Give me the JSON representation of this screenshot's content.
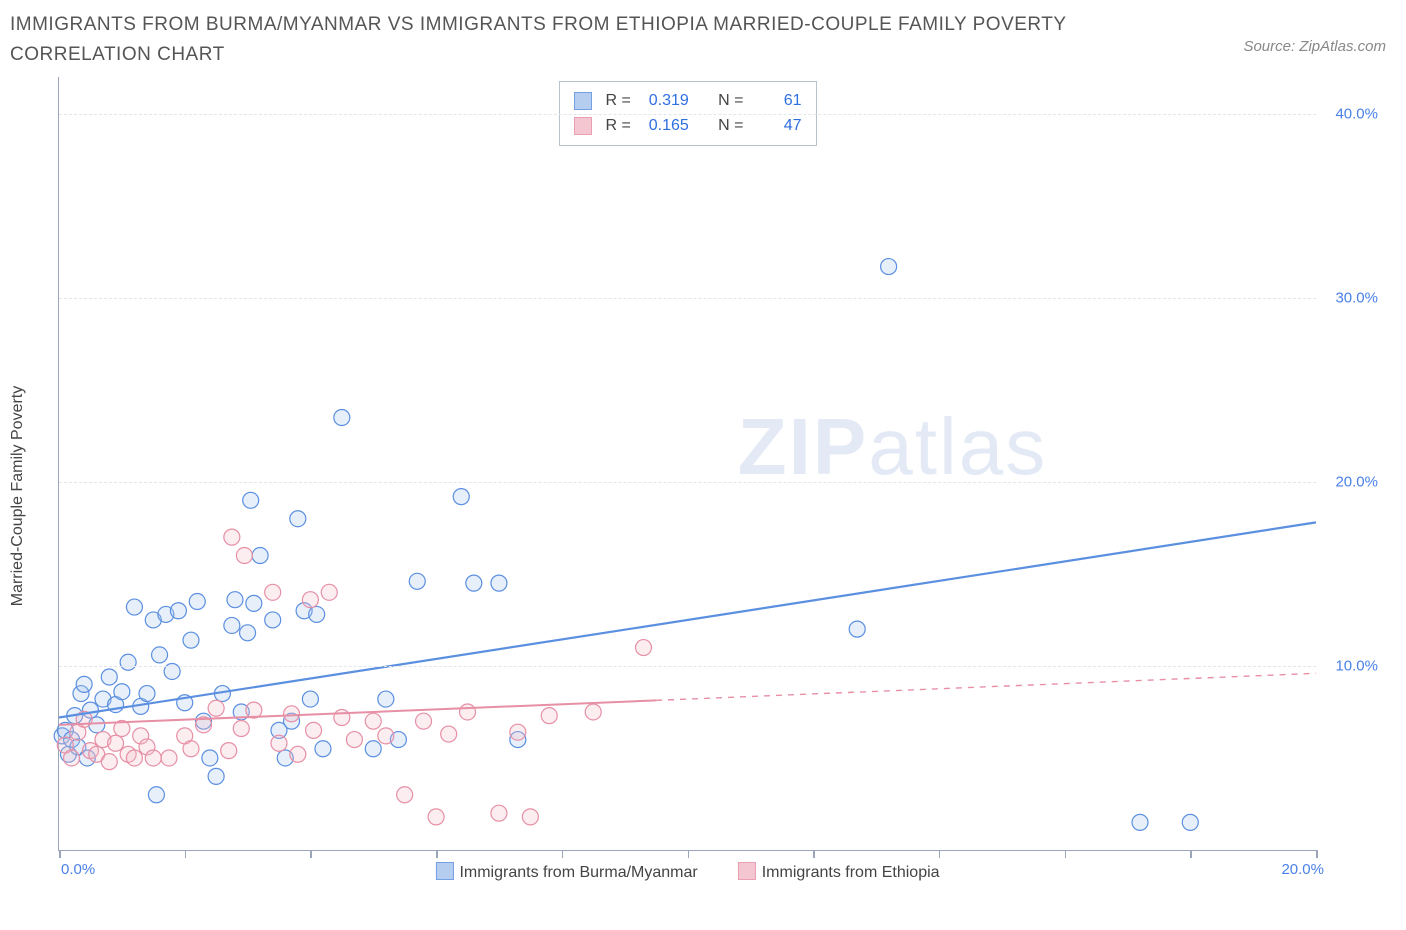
{
  "title": "IMMIGRANTS FROM BURMA/MYANMAR VS IMMIGRANTS FROM ETHIOPIA MARRIED-COUPLE FAMILY POVERTY CORRELATION CHART",
  "source": "Source: ZipAtlas.com",
  "watermark_bold": "ZIP",
  "watermark_light": "atlas",
  "yaxis_label": "Married-Couple Family Poverty",
  "chart": {
    "type": "scatter",
    "xlim": [
      0,
      20
    ],
    "ylim": [
      0,
      42
    ],
    "x_ticks": [
      0,
      2,
      4,
      6,
      8,
      10,
      12,
      14,
      16,
      18,
      20
    ],
    "x_tick_labels": {
      "first": "0.0%",
      "last": "20.0%"
    },
    "y_grid": [
      10,
      20,
      30,
      40
    ],
    "y_tick_labels": [
      "10.0%",
      "20.0%",
      "30.0%",
      "40.0%"
    ],
    "background_color": "#ffffff",
    "grid_color": "#e2e5ea",
    "axis_color": "#9aa5ba",
    "tick_label_color": "#4a80e8",
    "marker_radius": 8,
    "marker_stroke_width": 1.2,
    "marker_fill_opacity": 0.28,
    "series": [
      {
        "name": "Immigrants from Burma/Myanmar",
        "color_stroke": "#5b8fe0",
        "color_fill": "#a9c6ee",
        "R": "0.319",
        "N": "61",
        "trend": {
          "x1": 0,
          "y1": 7.2,
          "x2": 20,
          "y2": 17.8,
          "solid_until_x": 20,
          "width": 2.2
        },
        "points": [
          [
            0.05,
            6.2
          ],
          [
            0.1,
            6.5
          ],
          [
            0.15,
            5.2
          ],
          [
            0.2,
            6.0
          ],
          [
            0.25,
            7.3
          ],
          [
            0.3,
            5.6
          ],
          [
            0.35,
            8.5
          ],
          [
            0.4,
            9.0
          ],
          [
            0.45,
            5.0
          ],
          [
            0.5,
            7.6
          ],
          [
            0.6,
            6.8
          ],
          [
            0.7,
            8.2
          ],
          [
            0.8,
            9.4
          ],
          [
            0.9,
            7.9
          ],
          [
            1.0,
            8.6
          ],
          [
            1.1,
            10.2
          ],
          [
            1.2,
            13.2
          ],
          [
            1.3,
            7.8
          ],
          [
            1.4,
            8.5
          ],
          [
            1.5,
            12.5
          ],
          [
            1.55,
            3.0
          ],
          [
            1.6,
            10.6
          ],
          [
            1.7,
            12.8
          ],
          [
            1.8,
            9.7
          ],
          [
            1.9,
            13.0
          ],
          [
            2.0,
            8.0
          ],
          [
            2.1,
            11.4
          ],
          [
            2.2,
            13.5
          ],
          [
            2.3,
            7.0
          ],
          [
            2.4,
            5.0
          ],
          [
            2.5,
            4.0
          ],
          [
            2.6,
            8.5
          ],
          [
            2.75,
            12.2
          ],
          [
            2.8,
            13.6
          ],
          [
            2.9,
            7.5
          ],
          [
            3.0,
            11.8
          ],
          [
            3.05,
            19.0
          ],
          [
            3.1,
            13.4
          ],
          [
            3.2,
            16.0
          ],
          [
            3.4,
            12.5
          ],
          [
            3.5,
            6.5
          ],
          [
            3.6,
            5.0
          ],
          [
            3.7,
            7.0
          ],
          [
            3.8,
            18.0
          ],
          [
            3.9,
            13.0
          ],
          [
            4.0,
            8.2
          ],
          [
            4.1,
            12.8
          ],
          [
            4.2,
            5.5
          ],
          [
            4.5,
            23.5
          ],
          [
            5.0,
            5.5
          ],
          [
            5.2,
            8.2
          ],
          [
            5.4,
            6.0
          ],
          [
            5.7,
            14.6
          ],
          [
            6.4,
            19.2
          ],
          [
            6.6,
            14.5
          ],
          [
            7.0,
            14.5
          ],
          [
            7.3,
            6.0
          ],
          [
            12.7,
            12.0
          ],
          [
            13.2,
            31.7
          ],
          [
            17.2,
            1.5
          ],
          [
            18.0,
            1.5
          ]
        ]
      },
      {
        "name": "Immigrants from Ethiopia",
        "color_stroke": "#e78fa5",
        "color_fill": "#f2bdc9",
        "R": "0.165",
        "N": "47",
        "trend": {
          "x1": 0,
          "y1": 6.8,
          "x2": 20,
          "y2": 9.6,
          "solid_until_x": 9.5,
          "width": 2.0
        },
        "points": [
          [
            0.1,
            5.7
          ],
          [
            0.2,
            5.0
          ],
          [
            0.3,
            6.4
          ],
          [
            0.4,
            7.1
          ],
          [
            0.5,
            5.4
          ],
          [
            0.6,
            5.2
          ],
          [
            0.7,
            6.0
          ],
          [
            0.8,
            4.8
          ],
          [
            0.9,
            5.8
          ],
          [
            1.0,
            6.6
          ],
          [
            1.1,
            5.2
          ],
          [
            1.2,
            5.0
          ],
          [
            1.3,
            6.2
          ],
          [
            1.4,
            5.6
          ],
          [
            1.5,
            5.0
          ],
          [
            1.75,
            5.0
          ],
          [
            2.0,
            6.2
          ],
          [
            2.1,
            5.5
          ],
          [
            2.3,
            6.8
          ],
          [
            2.5,
            7.7
          ],
          [
            2.7,
            5.4
          ],
          [
            2.75,
            17.0
          ],
          [
            2.9,
            6.6
          ],
          [
            2.95,
            16.0
          ],
          [
            3.1,
            7.6
          ],
          [
            3.4,
            14.0
          ],
          [
            3.5,
            5.8
          ],
          [
            3.7,
            7.4
          ],
          [
            3.8,
            5.2
          ],
          [
            4.0,
            13.6
          ],
          [
            4.05,
            6.5
          ],
          [
            4.3,
            14.0
          ],
          [
            4.5,
            7.2
          ],
          [
            4.7,
            6.0
          ],
          [
            5.0,
            7.0
          ],
          [
            5.2,
            6.2
          ],
          [
            5.5,
            3.0
          ],
          [
            5.8,
            7.0
          ],
          [
            6.0,
            1.8
          ],
          [
            6.2,
            6.3
          ],
          [
            6.5,
            7.5
          ],
          [
            7.0,
            2.0
          ],
          [
            7.3,
            6.4
          ],
          [
            7.5,
            1.8
          ],
          [
            7.8,
            7.3
          ],
          [
            8.5,
            7.5
          ],
          [
            9.3,
            11.0
          ]
        ]
      }
    ]
  },
  "stat_labels": {
    "R": "R =",
    "N": "N ="
  },
  "bottom_legend": [
    "Immigrants from Burma/Myanmar",
    "Immigrants from Ethiopia"
  ]
}
